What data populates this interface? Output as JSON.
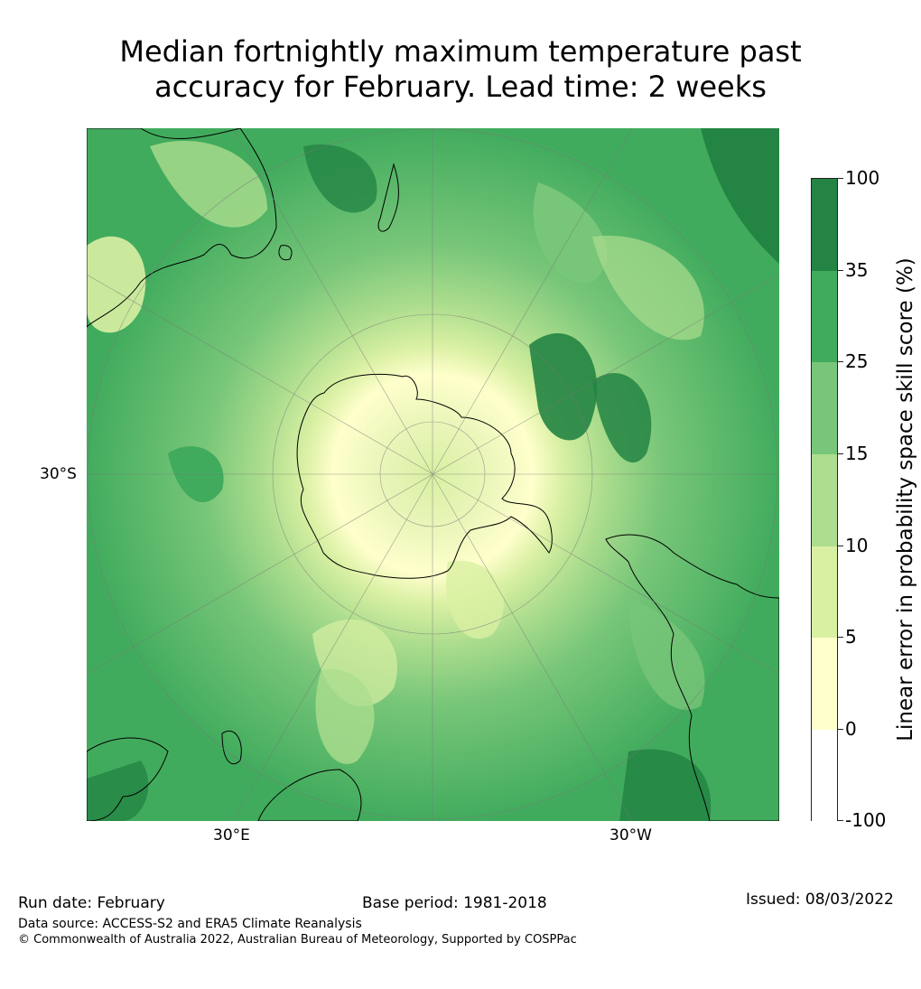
{
  "title": {
    "line1": "Median fortnightly maximum temperature past",
    "line2": "accuracy for February. Lead time: 2 weeks"
  },
  "map": {
    "projection": "south-polar-stereographic",
    "lat_labels": [
      "30°S"
    ],
    "lon_labels": [
      "30°E",
      "30°W"
    ],
    "graticule": true,
    "coastlines": true
  },
  "colorbar": {
    "title": "Linear error in probability space skill score (%)",
    "tick_labels": [
      "-100",
      "0",
      "5",
      "10",
      "15",
      "25",
      "35",
      "100"
    ],
    "bins": [
      {
        "from": "-100",
        "to": "0",
        "color": "#ffffff"
      },
      {
        "from": "0",
        "to": "5",
        "color": "#ffffcc"
      },
      {
        "from": "5",
        "to": "10",
        "color": "#d9f0a3"
      },
      {
        "from": "10",
        "to": "15",
        "color": "#addd8e"
      },
      {
        "from": "15",
        "to": "25",
        "color": "#78c679"
      },
      {
        "from": "25",
        "to": "35",
        "color": "#41ab5d"
      },
      {
        "from": "35",
        "to": "100",
        "color": "#238443"
      }
    ]
  },
  "footer": {
    "run_date": "Run date: February",
    "base_period": "Base period: 1981-2018",
    "issued": "Issued: 08/03/2022",
    "data_source": "Data source: ACCESS-S2 and ERA5 Climate Reanalysis",
    "copyright": "© Commonwealth of Australia 2022, Australian Bureau of Meteorology, Supported by COSPPac"
  }
}
